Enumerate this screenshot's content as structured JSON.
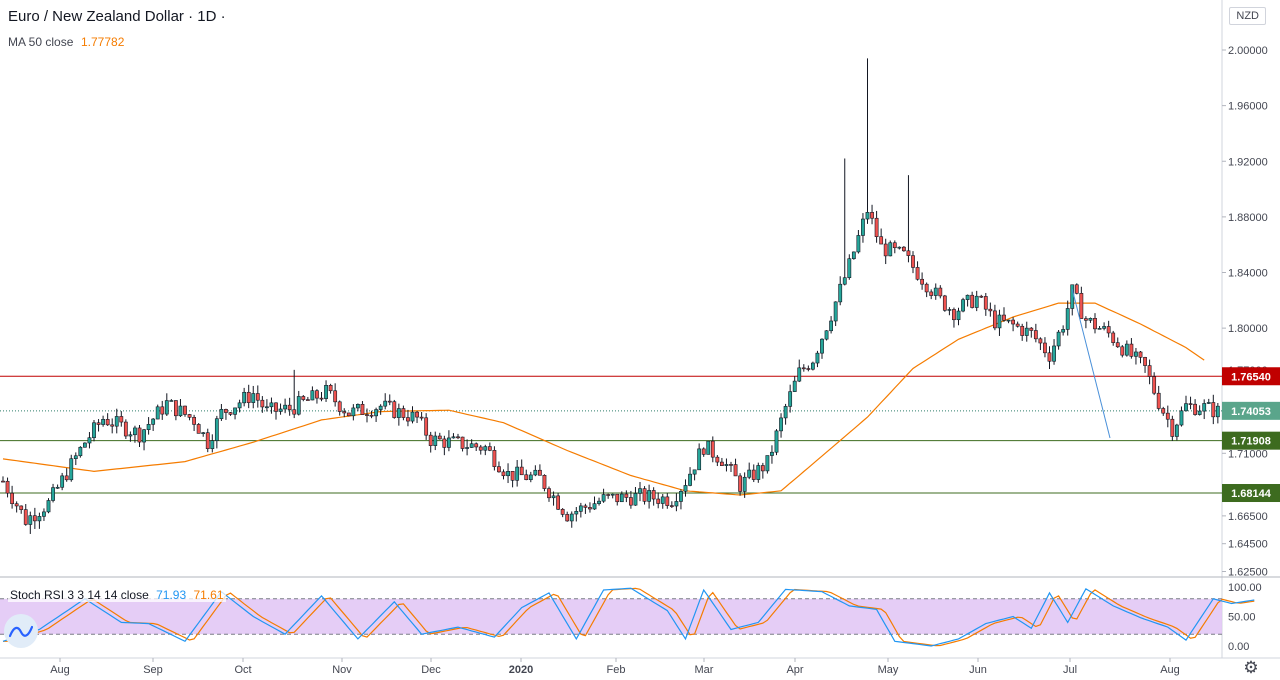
{
  "header": {
    "title": "Euro / New Zealand Dollar · 1D ·",
    "ma_label": "MA 50 close",
    "ma_value": "1.77782"
  },
  "currency": "NZD",
  "colors": {
    "up": "#26a69a",
    "down": "#ef5350",
    "candle": "#131722",
    "ma": "#f57c00",
    "trendline": "#4a90d9",
    "resistance": "#c00000",
    "support": "#3d6b1f",
    "current": "#2e7d6b",
    "stoch_k": "#2196f3",
    "stoch_d": "#f57c00",
    "stoch_band": "#e1c4f5"
  },
  "rsi": {
    "label": "Stoch RSI 3 3 14 14 close",
    "k_value": "71.93",
    "d_value": "71.61"
  },
  "settings_icon": "gear-icon",
  "chart_data": {
    "type": "candlestick",
    "price_axis": {
      "ylim": [
        1.615,
        2.02
      ],
      "ticks": [
        "2.00000",
        "1.96000",
        "1.92000",
        "1.88000",
        "1.84000",
        "1.80000",
        "1.77000",
        "1.71000",
        "1.66500",
        "1.64500",
        "1.62500"
      ],
      "tick_values": [
        2.0,
        1.96,
        1.92,
        1.88,
        1.84,
        1.8,
        1.77,
        1.71,
        1.665,
        1.645,
        1.625
      ]
    },
    "time_axis": {
      "labels": [
        "Aug",
        "Sep",
        "Oct",
        "Nov",
        "Dec",
        "2020",
        "Feb",
        "Mar",
        "Apr",
        "May",
        "Jun",
        "Jul",
        "Aug"
      ]
    },
    "horizontal_levels": [
      {
        "label": "1.76540",
        "value": 1.7654,
        "kind": "resistance"
      },
      {
        "label": "1.71908",
        "value": 1.71908,
        "kind": "support"
      },
      {
        "label": "1.68144",
        "value": 1.68144,
        "kind": "support"
      }
    ],
    "current_price": {
      "label": "1.74053",
      "value": 1.74053
    },
    "trendline": {
      "from": {
        "value": 1.828,
        "index": 235
      },
      "to": {
        "value": 1.714,
        "index": 280
      }
    },
    "close_anchors": [
      [
        0,
        1.69
      ],
      [
        5,
        1.662
      ],
      [
        10,
        1.674
      ],
      [
        18,
        1.718
      ],
      [
        22,
        1.735
      ],
      [
        30,
        1.724
      ],
      [
        36,
        1.746
      ],
      [
        42,
        1.734
      ],
      [
        45,
        1.718
      ],
      [
        48,
        1.739
      ],
      [
        55,
        1.753
      ],
      [
        58,
        1.74
      ],
      [
        63,
        1.742
      ],
      [
        71,
        1.754
      ],
      [
        76,
        1.739
      ],
      [
        83,
        1.744
      ],
      [
        91,
        1.735
      ],
      [
        94,
        1.72
      ],
      [
        100,
        1.717
      ],
      [
        106,
        1.714
      ],
      [
        111,
        1.695
      ],
      [
        118,
        1.692
      ],
      [
        124,
        1.666
      ],
      [
        132,
        1.677
      ],
      [
        140,
        1.679
      ],
      [
        147,
        1.677
      ],
      [
        150,
        1.69
      ],
      [
        154,
        1.715
      ],
      [
        158,
        1.706
      ],
      [
        162,
        1.687
      ],
      [
        168,
        1.703
      ],
      [
        172,
        1.743
      ],
      [
        175,
        1.768
      ],
      [
        178,
        1.778
      ],
      [
        182,
        1.81
      ],
      [
        186,
        1.845
      ],
      [
        190,
        1.885
      ],
      [
        193,
        1.858
      ],
      [
        198,
        1.852
      ],
      [
        202,
        1.836
      ],
      [
        206,
        1.82
      ],
      [
        209,
        1.812
      ],
      [
        214,
        1.822
      ],
      [
        218,
        1.805
      ],
      [
        222,
        1.802
      ],
      [
        226,
        1.796
      ],
      [
        230,
        1.781
      ],
      [
        233,
        1.803
      ],
      [
        235,
        1.826
      ],
      [
        238,
        1.806
      ],
      [
        243,
        1.796
      ],
      [
        247,
        1.783
      ],
      [
        251,
        1.771
      ],
      [
        254,
        1.747
      ],
      [
        257,
        1.728
      ],
      [
        260,
        1.744
      ],
      [
        264,
        1.743
      ],
      [
        267,
        1.74
      ]
    ],
    "ma50_anchors": [
      [
        0,
        1.706
      ],
      [
        20,
        1.697
      ],
      [
        40,
        1.704
      ],
      [
        55,
        1.718
      ],
      [
        70,
        1.734
      ],
      [
        83,
        1.74
      ],
      [
        98,
        1.741
      ],
      [
        110,
        1.732
      ],
      [
        124,
        1.712
      ],
      [
        138,
        1.694
      ],
      [
        150,
        1.683
      ],
      [
        162,
        1.68
      ],
      [
        171,
        1.683
      ],
      [
        180,
        1.708
      ],
      [
        190,
        1.736
      ],
      [
        200,
        1.771
      ],
      [
        210,
        1.792
      ],
      [
        222,
        1.808
      ],
      [
        232,
        1.818
      ],
      [
        240,
        1.818
      ],
      [
        250,
        1.803
      ],
      [
        260,
        1.786
      ],
      [
        264,
        1.777
      ]
    ],
    "rsi_anchors": [
      [
        0,
        8
      ],
      [
        8,
        28
      ],
      [
        18,
        80
      ],
      [
        26,
        40
      ],
      [
        32,
        38
      ],
      [
        40,
        8
      ],
      [
        48,
        92
      ],
      [
        55,
        50
      ],
      [
        62,
        20
      ],
      [
        70,
        85
      ],
      [
        78,
        12
      ],
      [
        86,
        75
      ],
      [
        92,
        20
      ],
      [
        100,
        32
      ],
      [
        108,
        15
      ],
      [
        114,
        65
      ],
      [
        120,
        90
      ],
      [
        126,
        12
      ],
      [
        132,
        95
      ],
      [
        138,
        98
      ],
      [
        146,
        60
      ],
      [
        150,
        12
      ],
      [
        154,
        95
      ],
      [
        160,
        28
      ],
      [
        166,
        40
      ],
      [
        172,
        96
      ],
      [
        180,
        92
      ],
      [
        186,
        68
      ],
      [
        192,
        62
      ],
      [
        196,
        8
      ],
      [
        204,
        0
      ],
      [
        210,
        12
      ],
      [
        216,
        38
      ],
      [
        222,
        50
      ],
      [
        226,
        30
      ],
      [
        230,
        90
      ],
      [
        234,
        40
      ],
      [
        238,
        97
      ],
      [
        244,
        68
      ],
      [
        250,
        48
      ],
      [
        256,
        32
      ],
      [
        260,
        10
      ],
      [
        266,
        80
      ],
      [
        270,
        72
      ],
      [
        275,
        78
      ]
    ],
    "rsi_axis": {
      "ticks": [
        "100.00",
        "50.00",
        "0.00"
      ],
      "tick_values": [
        100,
        50,
        0
      ],
      "band": [
        20,
        80
      ]
    }
  }
}
